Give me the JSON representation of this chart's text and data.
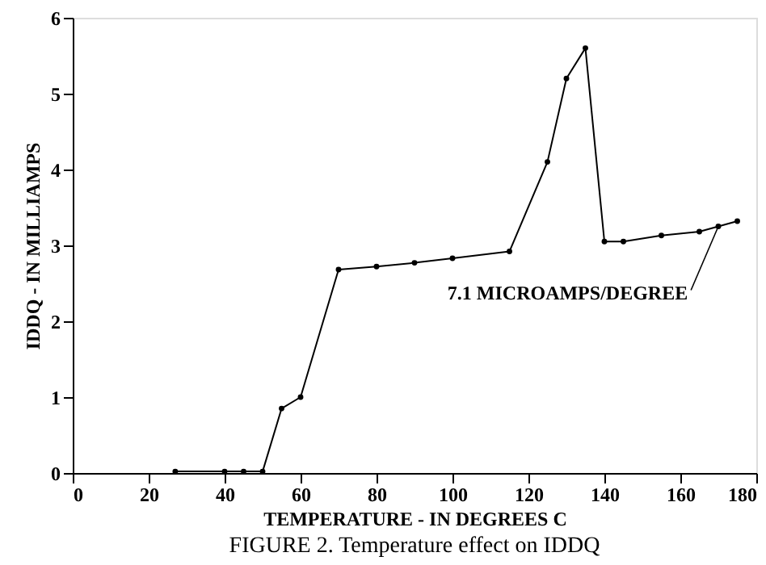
{
  "chart_data": {
    "type": "line",
    "title": "FIGURE  2. Temperature effect on IDDQ",
    "xlabel": "TEMPERATURE - IN DEGREES C",
    "ylabel": "IDDQ - IN MILLIAMPS",
    "x": [
      27,
      40,
      45,
      50,
      55,
      60,
      70,
      80,
      90,
      100,
      115,
      125,
      130,
      135,
      140,
      145,
      155,
      165,
      170,
      175
    ],
    "series": [
      {
        "color": "#000000",
        "values": [
          0.02,
          0.02,
          0.02,
          0.02,
          0.85,
          1.0,
          2.68,
          2.72,
          2.77,
          2.83,
          2.92,
          4.1,
          5.2,
          5.6,
          3.05,
          3.05,
          3.13,
          3.18,
          3.25,
          3.32
        ]
      }
    ],
    "xlim": [
      0,
      180
    ],
    "xticks": [
      0,
      20,
      40,
      60,
      80,
      100,
      120,
      140,
      160,
      180
    ],
    "ylim": [
      0,
      6
    ],
    "yticks": [
      0,
      1,
      2,
      3,
      4,
      5,
      6
    ],
    "marker": "circle",
    "line_style": "solid",
    "grid": false,
    "annotations": [
      {
        "text": "7.1 MICROAMPS/DEGREE",
        "x": 170,
        "y": 3.25
      }
    ]
  }
}
